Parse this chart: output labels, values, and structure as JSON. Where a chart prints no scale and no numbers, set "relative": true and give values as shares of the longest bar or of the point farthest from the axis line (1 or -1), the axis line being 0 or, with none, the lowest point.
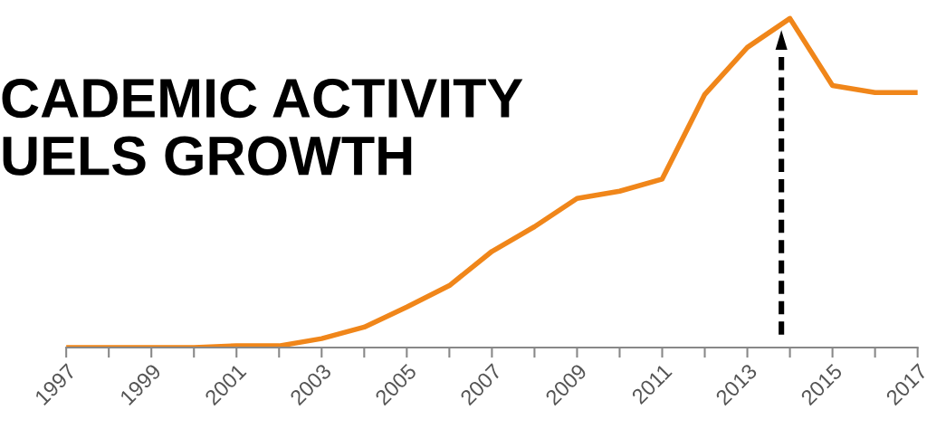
{
  "chart_data": {
    "type": "line",
    "title": "CADEMIC ACTIVITY\nUELS GROWTH",
    "relative": true,
    "categories": [
      "1997",
      null,
      "1999",
      null,
      "2001",
      null,
      "2003",
      null,
      "2005",
      null,
      "2007",
      null,
      "2009",
      null,
      "2011",
      null,
      "2013",
      null,
      "2015",
      null,
      "2017"
    ],
    "series": [
      {
        "color": "#f0861a",
        "values": [
          0,
          0,
          0,
          0,
          0.005,
          0.005,
          0.027,
          0.062,
          0.123,
          0.188,
          0.292,
          0.367,
          0.453,
          0.475,
          0.512,
          0.769,
          0.912,
          1,
          0.796,
          0.775,
          0.775
        ]
      }
    ],
    "grid": false,
    "legend": false,
    "marker": "none",
    "line_style": "solid"
  }
}
